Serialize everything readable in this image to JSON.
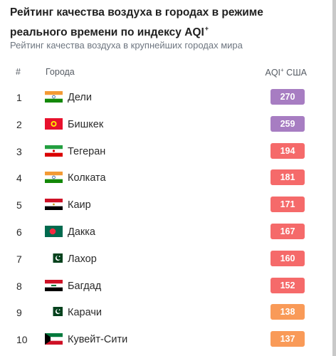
{
  "page": {
    "title": "Рейтинг качества воздуха в городах в режиме реального времени по индексу AQI",
    "title_sup": "+",
    "subtitle": "Рейтинг качества воздуха в крупнейших городах мира"
  },
  "table": {
    "headers": {
      "rank": "#",
      "city": "Города",
      "aqi": "AQI",
      "aqi_sup": "+",
      "aqi_suffix": " США"
    },
    "rows": [
      {
        "rank": "1",
        "city": "Дели",
        "flag": "india-flag-icon",
        "aqi": "270",
        "color": "#a77dc2"
      },
      {
        "rank": "2",
        "city": "Бишкек",
        "flag": "kyrgyzstan-flag-icon",
        "aqi": "259",
        "color": "#a77dc2"
      },
      {
        "rank": "3",
        "city": "Тегеран",
        "flag": "iran-flag-icon",
        "aqi": "194",
        "color": "#f56a6a"
      },
      {
        "rank": "4",
        "city": "Колката",
        "flag": "india-flag-icon",
        "aqi": "181",
        "color": "#f56a6a"
      },
      {
        "rank": "5",
        "city": "Каир",
        "flag": "egypt-flag-icon",
        "aqi": "171",
        "color": "#f56a6a"
      },
      {
        "rank": "6",
        "city": "Дакка",
        "flag": "bangladesh-flag-icon",
        "aqi": "167",
        "color": "#f56a6a"
      },
      {
        "rank": "7",
        "city": "Лахор",
        "flag": "pakistan-flag-icon",
        "aqi": "160",
        "color": "#f56a6a"
      },
      {
        "rank": "8",
        "city": "Багдад",
        "flag": "iraq-flag-icon",
        "aqi": "152",
        "color": "#f56a6a"
      },
      {
        "rank": "9",
        "city": "Карачи",
        "flag": "pakistan-flag-icon",
        "aqi": "138",
        "color": "#f99a58"
      },
      {
        "rank": "10",
        "city": "Кувейт-Сити",
        "flag": "kuwait-flag-icon",
        "aqi": "137",
        "color": "#f99a58"
      }
    ]
  }
}
